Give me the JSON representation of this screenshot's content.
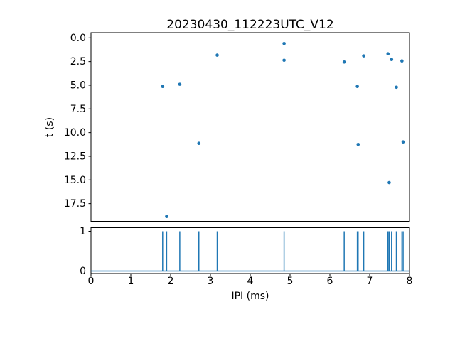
{
  "figure": {
    "title": "20230430_112223UTC_V12",
    "background_color": "#ffffff",
    "accent_color": "#1f77b4",
    "axis_color": "#000000"
  },
  "chart_data": [
    {
      "type": "scatter",
      "title": "20230430_112223UTC_V12",
      "xlabel": "",
      "ylabel": "t (s)",
      "xlim": [
        0,
        8
      ],
      "ylim": [
        -0.55,
        19.4
      ],
      "y_axis_inverted": true,
      "grid": false,
      "legend": null,
      "marker_color": "#1f77b4",
      "yticks": [
        0.0,
        2.5,
        5.0,
        7.5,
        10.0,
        12.5,
        15.0,
        17.5
      ],
      "ytick_labels": [
        "0.0",
        "2.5",
        "5.0",
        "7.5",
        "10.0",
        "12.5",
        "15.0",
        "17.5"
      ],
      "points": [
        {
          "ipi": 4.85,
          "t": 0.6
        },
        {
          "ipi": 7.46,
          "t": 1.68
        },
        {
          "ipi": 3.17,
          "t": 1.82
        },
        {
          "ipi": 6.85,
          "t": 1.9
        },
        {
          "ipi": 7.55,
          "t": 2.28
        },
        {
          "ipi": 4.85,
          "t": 2.36
        },
        {
          "ipi": 7.81,
          "t": 2.43
        },
        {
          "ipi": 6.36,
          "t": 2.55
        },
        {
          "ipi": 2.23,
          "t": 4.9
        },
        {
          "ipi": 1.8,
          "t": 5.13
        },
        {
          "ipi": 6.69,
          "t": 5.13
        },
        {
          "ipi": 7.67,
          "t": 5.21
        },
        {
          "ipi": 7.84,
          "t": 10.98
        },
        {
          "ipi": 2.71,
          "t": 11.13
        },
        {
          "ipi": 6.71,
          "t": 11.25
        },
        {
          "ipi": 7.49,
          "t": 15.28
        },
        {
          "ipi": 1.9,
          "t": 18.86
        }
      ]
    },
    {
      "type": "line",
      "subtype": "pulse-train",
      "xlabel": "IPI (ms)",
      "ylabel": "",
      "xlim": [
        0,
        8
      ],
      "ylim": [
        -0.06,
        1.12
      ],
      "grid": false,
      "legend": null,
      "line_color": "#1f77b4",
      "baseline_value": 0,
      "pulse_value": 1,
      "xticks": [
        0,
        1,
        2,
        3,
        4,
        5,
        6,
        7,
        8
      ],
      "xtick_labels": [
        "0",
        "1",
        "2",
        "3",
        "4",
        "5",
        "6",
        "7",
        "8"
      ],
      "yticks": [
        0,
        1
      ],
      "ytick_labels": [
        "0",
        "1"
      ],
      "spike_x": [
        1.8,
        1.9,
        2.23,
        2.71,
        3.17,
        4.85,
        6.36,
        6.69,
        6.71,
        6.85,
        7.46,
        7.49,
        7.55,
        7.67,
        7.81,
        7.84
      ]
    }
  ]
}
